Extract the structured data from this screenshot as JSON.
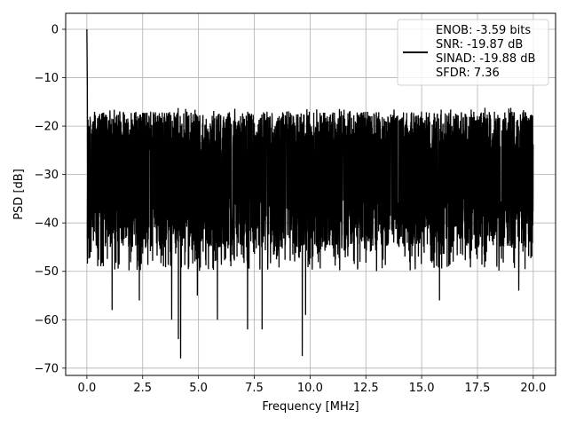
{
  "chart_data": {
    "type": "line",
    "title": "",
    "xlabel": "Frequency [MHz]",
    "ylabel": "PSD [dB]",
    "xlim": [
      -0.95,
      21.0
    ],
    "ylim": [
      -71.5,
      3.3
    ],
    "xticks": [
      0.0,
      2.5,
      5.0,
      7.5,
      10.0,
      12.5,
      15.0,
      17.5,
      20.0
    ],
    "xtick_labels": [
      "0.0",
      "2.5",
      "5.0",
      "7.5",
      "10.0",
      "12.5",
      "15.0",
      "17.5",
      "20.0"
    ],
    "yticks": [
      0,
      -10,
      -20,
      -30,
      -40,
      -50,
      -60,
      -70
    ],
    "ytick_labels": [
      "0",
      "−10",
      "−20",
      "−30",
      "−40",
      "−50",
      "−60",
      "−70"
    ],
    "grid": true,
    "legend_position": "top-right",
    "series": [
      {
        "color": "#000000",
        "legend_lines": [
          "ENOB: -3.59 bits",
          "SNR: -19.87 dB",
          "SINAD: -19.88 dB",
          "SFDR: 7.36"
        ],
        "peak": {
          "x": 0.0,
          "y": 0.0
        },
        "noise_floor_top_typical": -17,
        "noise_floor_bottom_typical": -45,
        "deep_dips": [
          {
            "x": 1.13,
            "y": -58
          },
          {
            "x": 2.35,
            "y": -56
          },
          {
            "x": 3.8,
            "y": -60
          },
          {
            "x": 4.1,
            "y": -64
          },
          {
            "x": 4.2,
            "y": -68
          },
          {
            "x": 4.95,
            "y": -55
          },
          {
            "x": 5.85,
            "y": -60
          },
          {
            "x": 7.2,
            "y": -62
          },
          {
            "x": 7.85,
            "y": -62
          },
          {
            "x": 9.65,
            "y": -67.5
          },
          {
            "x": 9.8,
            "y": -59
          },
          {
            "x": 15.8,
            "y": -56
          },
          {
            "x": 19.35,
            "y": -54
          }
        ]
      }
    ]
  }
}
